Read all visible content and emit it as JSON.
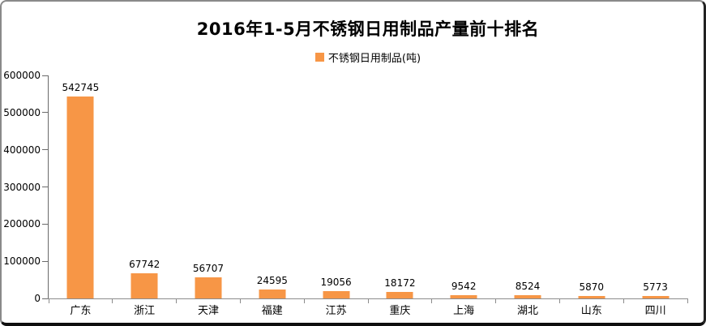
{
  "chart_data": {
    "type": "bar",
    "title": "2016年1-5月不锈钢日用制品产量前十排名",
    "legend": "不锈钢日用制品(吨)",
    "legend_position": "top-center",
    "categories": [
      "广东",
      "浙江",
      "天津",
      "福建",
      "江苏",
      "重庆",
      "上海",
      "湖北",
      "山东",
      "四川"
    ],
    "values": [
      542745,
      67742,
      56707,
      24595,
      19056,
      18172,
      9542,
      8524,
      5870,
      5773
    ],
    "xlabel": "",
    "ylabel": "",
    "ylim": [
      0,
      600000
    ],
    "y_ticks": [
      0,
      100000,
      200000,
      300000,
      400000,
      500000,
      600000
    ],
    "grid": false,
    "data_labels": true,
    "bar_color": "#F79646",
    "axis_color": "#8C8C8C",
    "text_color": "#000000",
    "background_color": "#FFFFFF"
  }
}
